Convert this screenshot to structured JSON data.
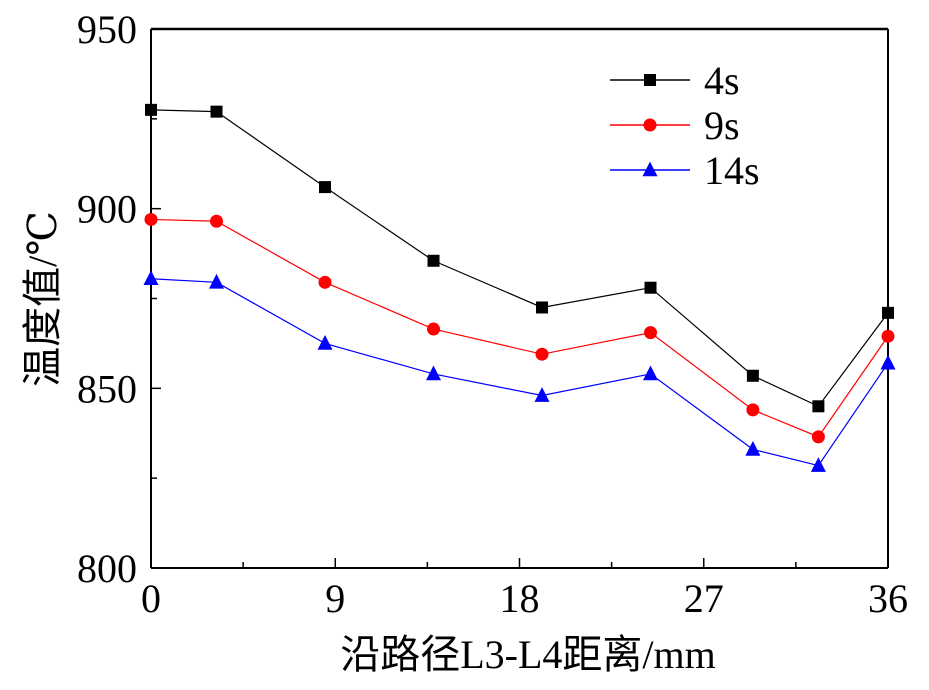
{
  "chart_data": {
    "type": "line",
    "title": "",
    "xlabel": "沿路径L3-L4距离/mm",
    "ylabel": "温度值/℃",
    "xlim": [
      0,
      36
    ],
    "ylim": [
      800,
      950
    ],
    "x_ticks": [
      0,
      9,
      18,
      27,
      36
    ],
    "x_tick_labels": [
      "0",
      "9",
      "18",
      "27",
      "36"
    ],
    "y_ticks": [
      800,
      850,
      900,
      950
    ],
    "y_tick_labels": [
      "800",
      "850",
      "900",
      "950"
    ],
    "grid": false,
    "legend_position": "top-right",
    "x": [
      0,
      3.2,
      8.5,
      13.8,
      19.1,
      24.4,
      29.4,
      32.6,
      36
    ],
    "series": [
      {
        "name": "4s",
        "marker": "square",
        "color": "#000000",
        "values": [
          927.5,
          927.0,
          906.0,
          885.5,
          872.5,
          878.0,
          853.5,
          845.0,
          871.0
        ]
      },
      {
        "name": "9s",
        "marker": "circle",
        "color": "#ff0000",
        "values": [
          897.0,
          896.5,
          879.5,
          866.5,
          859.5,
          865.5,
          844.0,
          836.5,
          864.5
        ]
      },
      {
        "name": "14s",
        "marker": "triangle",
        "color": "#0000ff",
        "values": [
          880.5,
          879.5,
          862.5,
          854.0,
          848.0,
          854.0,
          833.0,
          828.5,
          857.0
        ]
      }
    ]
  }
}
